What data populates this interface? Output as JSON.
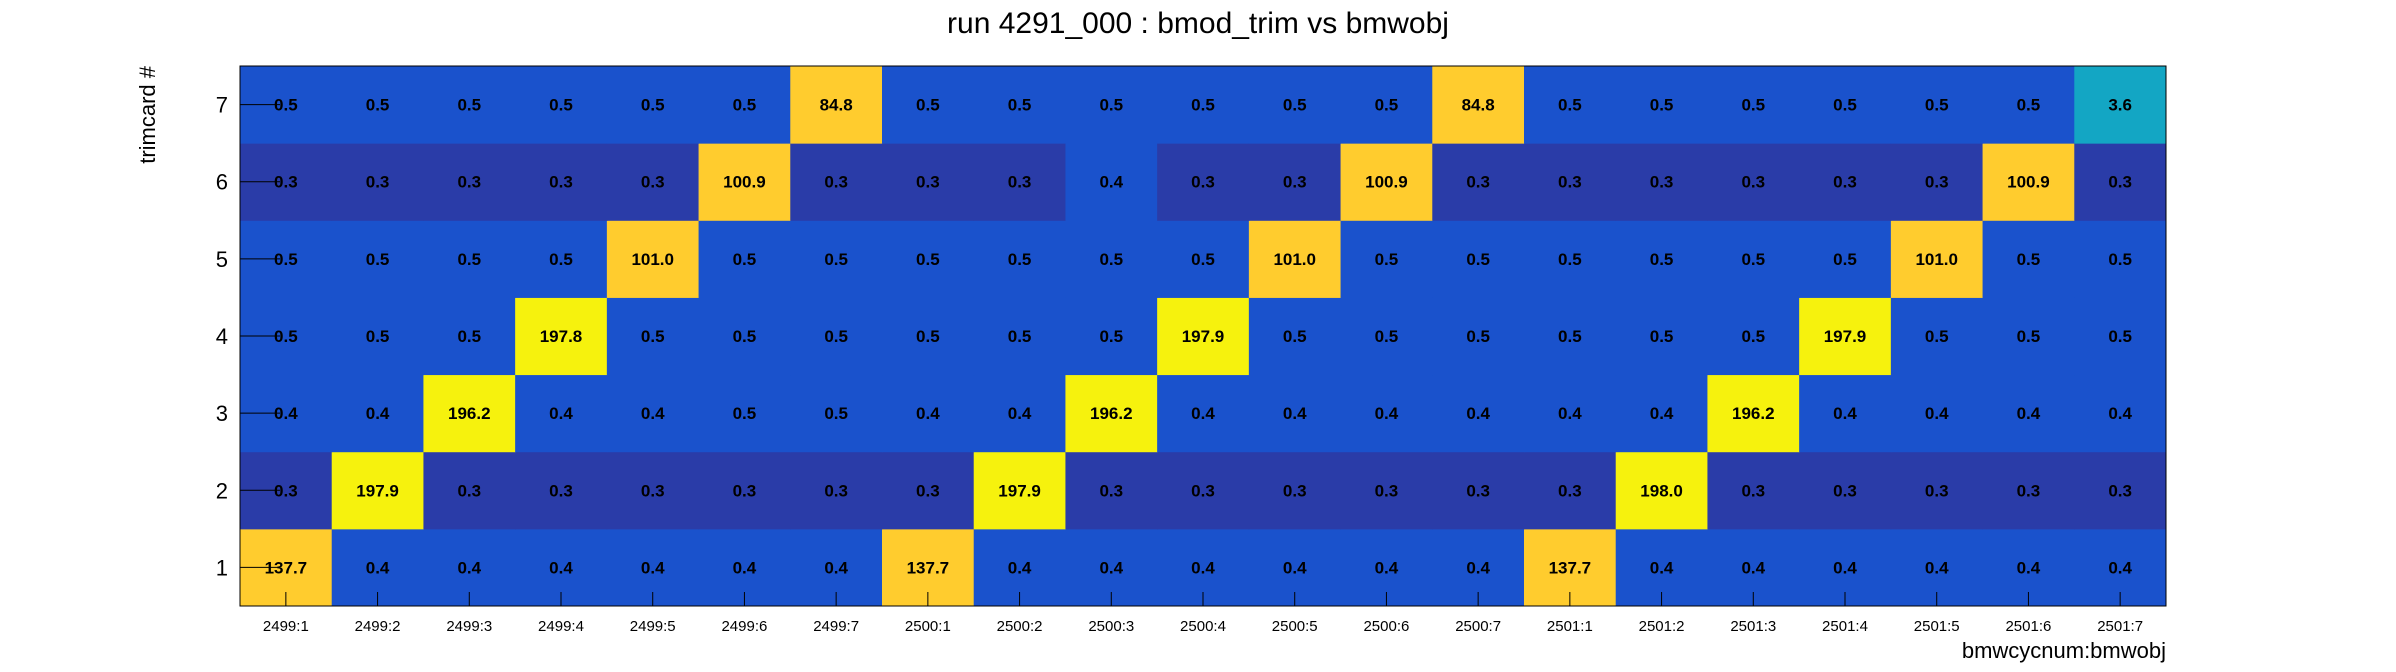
{
  "chart_data": {
    "type": "heatmap",
    "title": "run 4291_000 : bmod_trim vs bmwobj",
    "xlabel": "bmwcycnum:bmwobj",
    "ylabel": "trimcard #",
    "x_categories": [
      "2499:1",
      "2499:2",
      "2499:3",
      "2499:4",
      "2499:5",
      "2499:6",
      "2499:7",
      "2500:1",
      "2500:2",
      "2500:3",
      "2500:4",
      "2500:5",
      "2500:6",
      "2500:7",
      "2501:1",
      "2501:2",
      "2501:3",
      "2501:4",
      "2501:5",
      "2501:6",
      "2501:7"
    ],
    "y_categories": [
      "1",
      "2",
      "3",
      "4",
      "5",
      "6",
      "7"
    ],
    "values": [
      [
        "137.7",
        "0.4",
        "0.4",
        "0.4",
        "0.4",
        "0.4",
        "0.4",
        "137.7",
        "0.4",
        "0.4",
        "0.4",
        "0.4",
        "0.4",
        "0.4",
        "137.7",
        "0.4",
        "0.4",
        "0.4",
        "0.4",
        "0.4",
        "0.4"
      ],
      [
        "0.3",
        "197.9",
        "0.3",
        "0.3",
        "0.3",
        "0.3",
        "0.3",
        "0.3",
        "197.9",
        "0.3",
        "0.3",
        "0.3",
        "0.3",
        "0.3",
        "0.3",
        "198.0",
        "0.3",
        "0.3",
        "0.3",
        "0.3",
        "0.3"
      ],
      [
        "0.4",
        "0.4",
        "196.2",
        "0.4",
        "0.4",
        "0.5",
        "0.5",
        "0.4",
        "0.4",
        "196.2",
        "0.4",
        "0.4",
        "0.4",
        "0.4",
        "0.4",
        "0.4",
        "196.2",
        "0.4",
        "0.4",
        "0.4",
        "0.4"
      ],
      [
        "0.5",
        "0.5",
        "0.5",
        "197.8",
        "0.5",
        "0.5",
        "0.5",
        "0.5",
        "0.5",
        "0.5",
        "197.9",
        "0.5",
        "0.5",
        "0.5",
        "0.5",
        "0.5",
        "0.5",
        "197.9",
        "0.5",
        "0.5",
        "0.5"
      ],
      [
        "0.5",
        "0.5",
        "0.5",
        "0.5",
        "101.0",
        "0.5",
        "0.5",
        "0.5",
        "0.5",
        "0.5",
        "0.5",
        "101.0",
        "0.5",
        "0.5",
        "0.5",
        "0.5",
        "0.5",
        "0.5",
        "101.0",
        "0.5",
        "0.5"
      ],
      [
        "0.3",
        "0.3",
        "0.3",
        "0.3",
        "0.3",
        "100.9",
        "0.3",
        "0.3",
        "0.3",
        "0.4",
        "0.3",
        "0.3",
        "100.9",
        "0.3",
        "0.3",
        "0.3",
        "0.3",
        "0.3",
        "0.3",
        "100.9",
        "0.3"
      ],
      [
        "0.5",
        "0.5",
        "0.5",
        "0.5",
        "0.5",
        "0.5",
        "84.8",
        "0.5",
        "0.5",
        "0.5",
        "0.5",
        "0.5",
        "0.5",
        "84.8",
        "0.5",
        "0.5",
        "0.5",
        "0.5",
        "0.5",
        "0.5",
        "3.6"
      ]
    ],
    "colors": {
      "very_low": "#2a3ca8",
      "low": "#1a52cc",
      "low_mid": "#13a6c4",
      "mid": "#ffcc2e",
      "high": "#f6f20d"
    },
    "grid": false,
    "legend": "none"
  }
}
